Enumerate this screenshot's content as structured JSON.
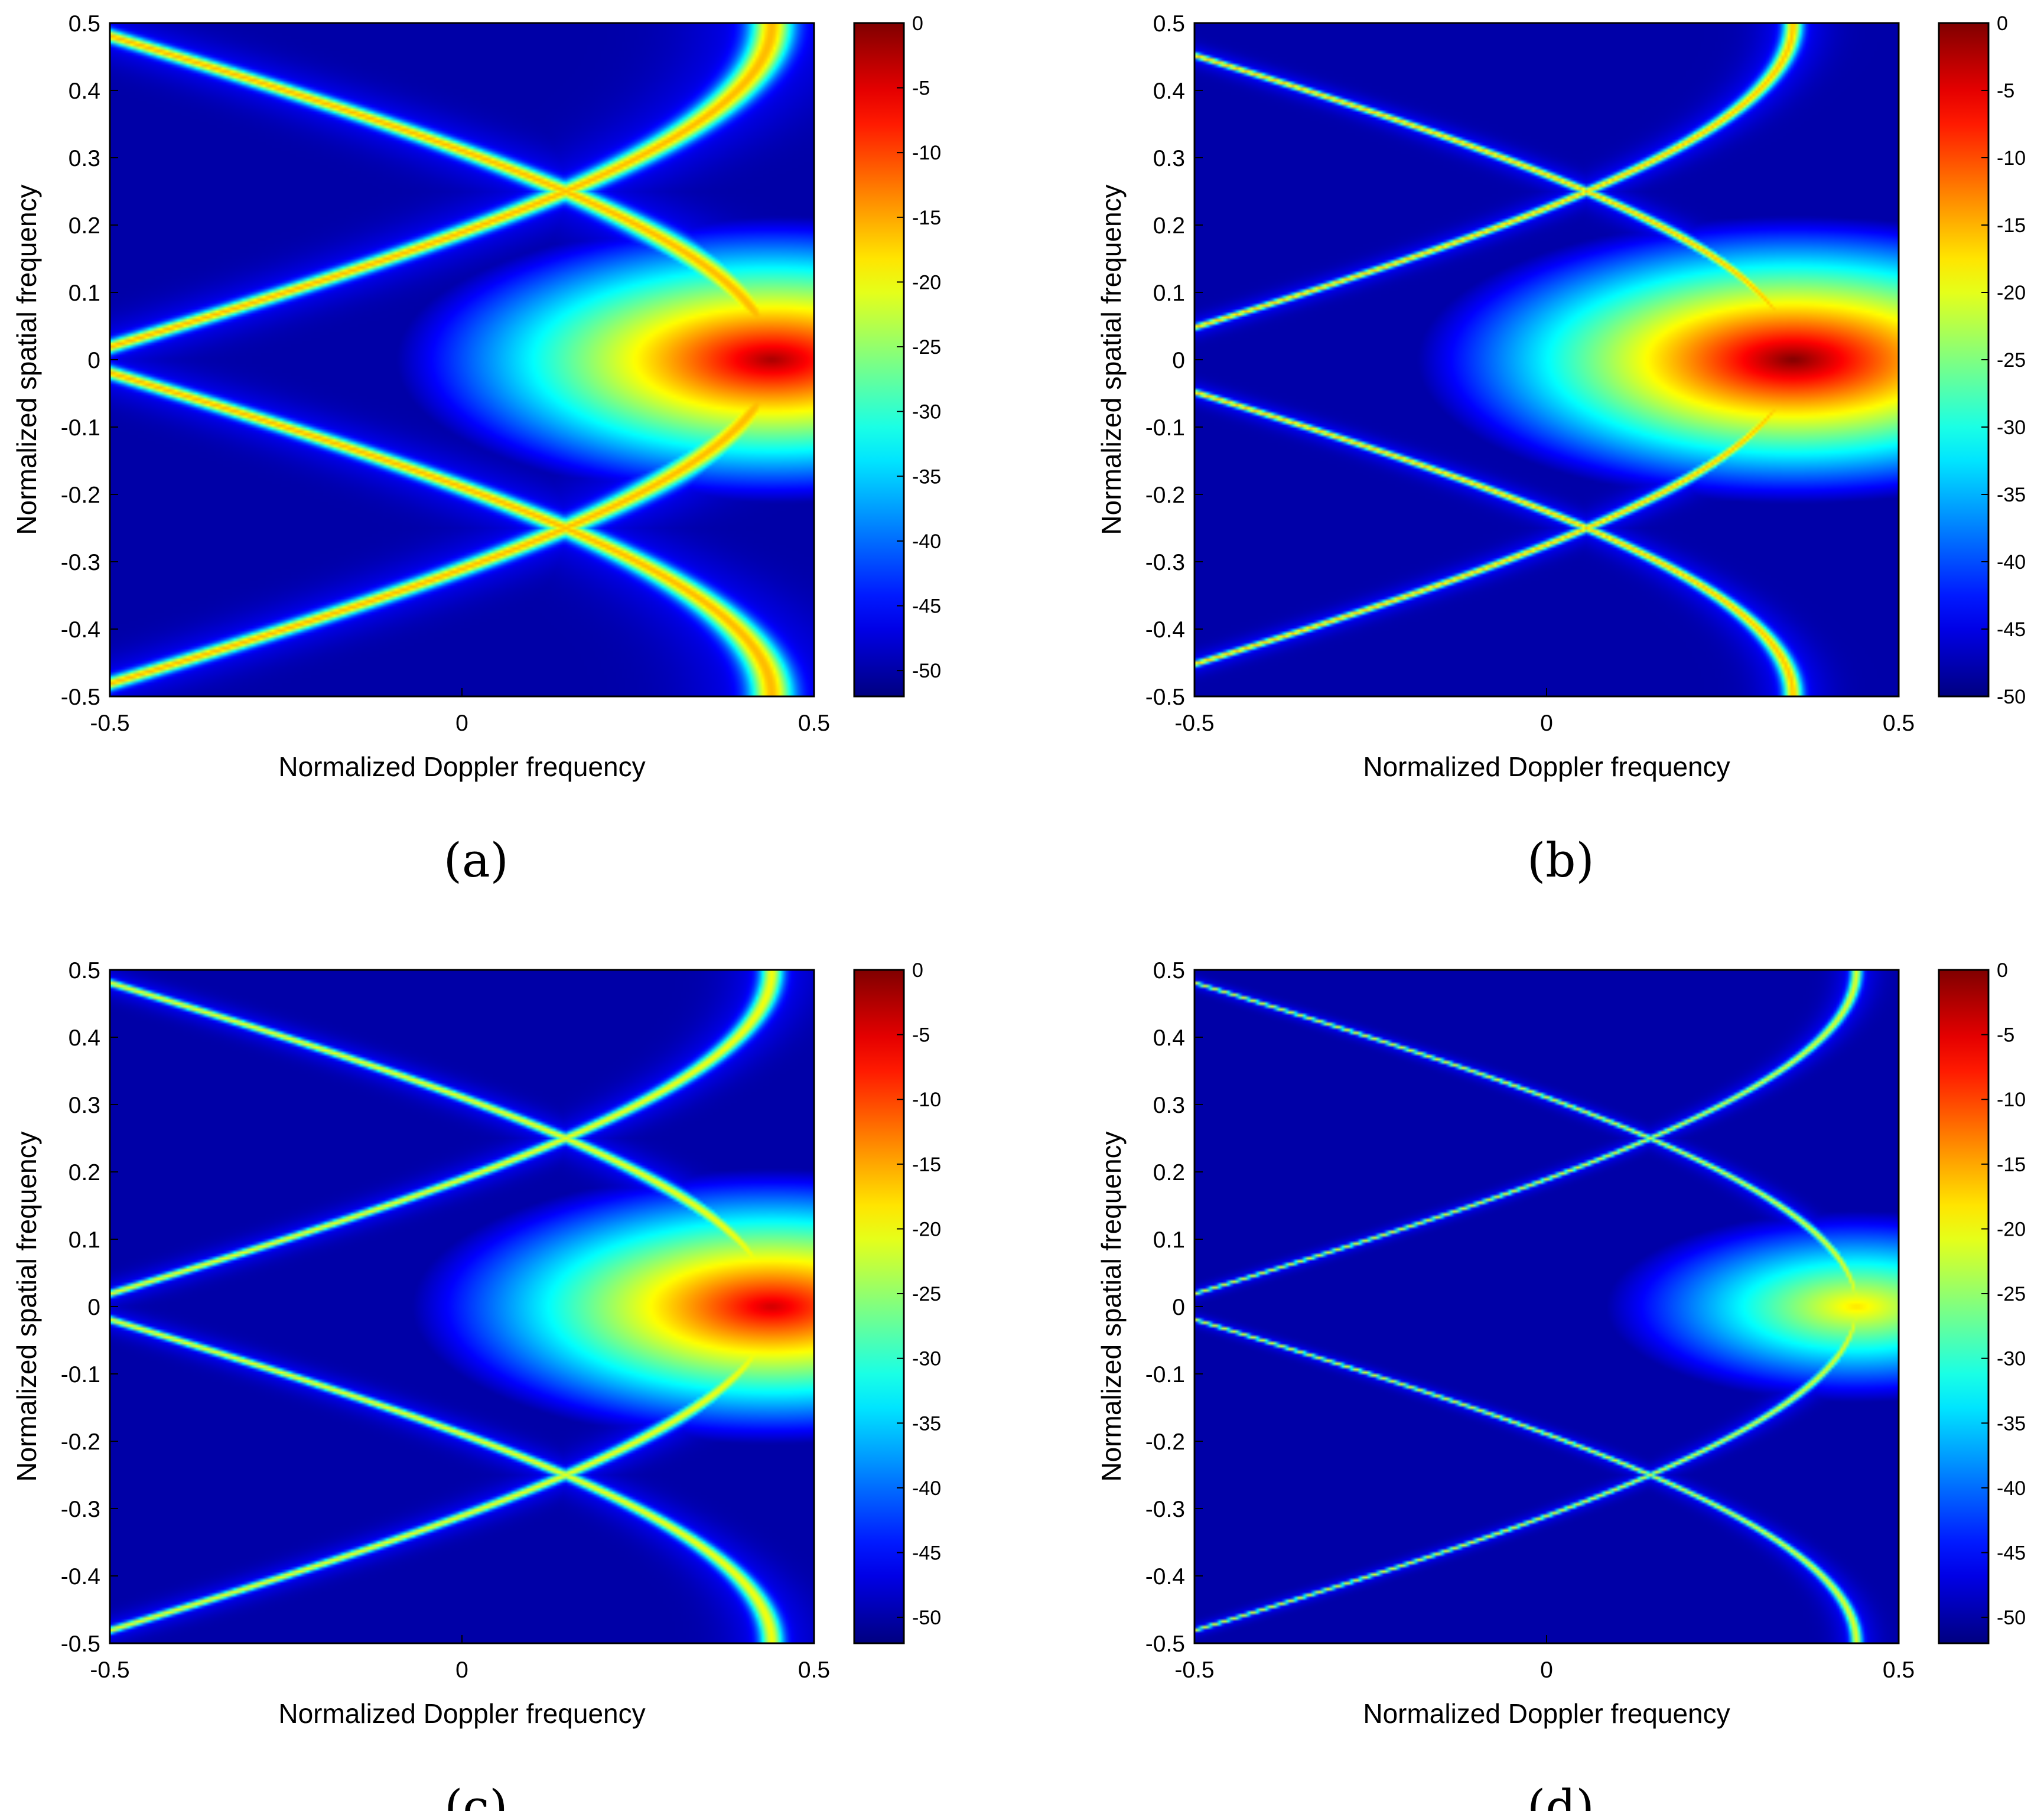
{
  "chart_data": [
    {
      "type": "heatmap",
      "caption": "(a)",
      "xlabel": "Normalized Doppler frequency",
      "ylabel": "Normalized spatial frequency",
      "xlim": [
        -0.5,
        0.5
      ],
      "ylim": [
        -0.5,
        0.5
      ],
      "xticks": [
        "-0.5",
        "0",
        "0.5"
      ],
      "yticks": [
        "0.5",
        "0.4",
        "0.3",
        "0.2",
        "0.1",
        "0",
        "-0.1",
        "-0.2",
        "-0.3",
        "-0.4",
        "-0.5"
      ],
      "colorbar_ticks": [
        "0",
        "-5",
        "-10",
        "-15",
        "-20",
        "-25",
        "-30",
        "-35",
        "-40",
        "-45",
        "-50"
      ],
      "clim": [
        -52,
        0
      ],
      "colormap": "jet",
      "ridge": {
        "peak_doppler": 0.44,
        "notch_spatial": 0.25,
        "ridge_width": 0.03,
        "ridge_level_dB": -22,
        "peak_level_dB": -2
      }
    },
    {
      "type": "heatmap",
      "caption": "(b)",
      "xlabel": "Normalized Doppler frequency",
      "ylabel": "Normalized spatial frequency",
      "xlim": [
        -0.5,
        0.5
      ],
      "ylim": [
        -0.5,
        0.5
      ],
      "xticks": [
        "-0.5",
        "0",
        "0.5"
      ],
      "yticks": [
        "0.5",
        "0.4",
        "0.3",
        "0.2",
        "0.1",
        "0",
        "-0.1",
        "-0.2",
        "-0.3",
        "-0.4",
        "-0.5"
      ],
      "colorbar_ticks": [
        "0",
        "-5",
        "-10",
        "-15",
        "-20",
        "-25",
        "-30",
        "-35",
        "-40",
        "-45",
        "-50"
      ],
      "clim": [
        -50,
        0
      ],
      "colormap": "jet",
      "ridge": {
        "peak_doppler": 0.35,
        "notch_spatial": 0.25,
        "ridge_width": 0.013,
        "ridge_level_dB": -22,
        "peak_level_dB": 0
      }
    },
    {
      "type": "heatmap",
      "caption": "(c)",
      "xlabel": "Normalized Doppler frequency",
      "ylabel": "Normalized spatial frequency",
      "xlim": [
        -0.5,
        0.5
      ],
      "ylim": [
        -0.5,
        0.5
      ],
      "xticks": [
        "-0.5",
        "0",
        "0.5"
      ],
      "yticks": [
        "0.5",
        "0.4",
        "0.3",
        "0.2",
        "0.1",
        "0",
        "-0.1",
        "-0.2",
        "-0.3",
        "-0.4",
        "-0.5"
      ],
      "colorbar_ticks": [
        "0",
        "-5",
        "-10",
        "-15",
        "-20",
        "-25",
        "-30",
        "-35",
        "-40",
        "-45",
        "-50"
      ],
      "clim": [
        -52,
        0
      ],
      "colormap": "jet",
      "ridge": {
        "peak_doppler": 0.44,
        "notch_spatial": 0.25,
        "ridge_width": 0.016,
        "ridge_level_dB": -26,
        "peak_level_dB": -4
      }
    },
    {
      "type": "heatmap",
      "caption": "(d)",
      "xlabel": "Normalized Doppler frequency",
      "ylabel": "Normalized spatial frequency",
      "xlim": [
        -0.5,
        0.5
      ],
      "ylim": [
        -0.5,
        0.5
      ],
      "xticks": [
        "-0.5",
        "0",
        "0.5"
      ],
      "yticks": [
        "0.5",
        "0.4",
        "0.3",
        "0.2",
        "0.1",
        "0",
        "-0.1",
        "-0.2",
        "-0.3",
        "-0.4",
        "-0.5"
      ],
      "colorbar_ticks": [
        "0",
        "-5",
        "-10",
        "-15",
        "-20",
        "-25",
        "-30",
        "-35",
        "-40",
        "-45",
        "-50"
      ],
      "clim": [
        -52,
        0
      ],
      "colormap": "jet",
      "ridge": {
        "peak_doppler": 0.44,
        "notch_spatial": 0.25,
        "ridge_width": 0.008,
        "ridge_level_dB": -27,
        "peak_level_dB": -18
      }
    }
  ]
}
